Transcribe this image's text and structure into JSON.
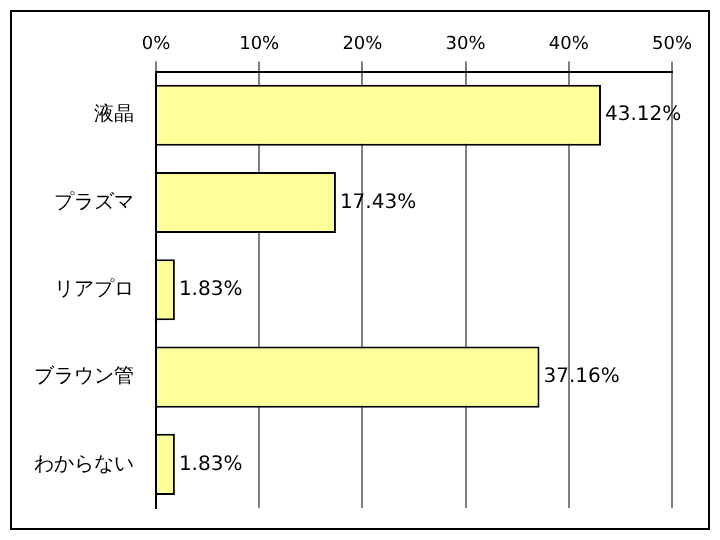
{
  "chart_data": {
    "type": "bar",
    "orientation": "horizontal",
    "categories": [
      "液晶",
      "プラズマ",
      "リアプロ",
      "ブラウン管",
      "わからない"
    ],
    "values": [
      43.12,
      17.43,
      1.83,
      37.16,
      1.83
    ],
    "value_labels": [
      "43.12%",
      "17.43%",
      "1.83%",
      "37.16%",
      "1.83%"
    ],
    "color": "#ffff99",
    "xlim": [
      0,
      50
    ],
    "xticks": [
      {
        "value": 0,
        "label": "0%"
      },
      {
        "value": 10,
        "label": "10%"
      },
      {
        "value": 20,
        "label": "20%"
      },
      {
        "value": 30,
        "label": "30%"
      },
      {
        "value": 40,
        "label": "40%"
      },
      {
        "value": 50,
        "label": "50%"
      }
    ],
    "grid": "x"
  }
}
